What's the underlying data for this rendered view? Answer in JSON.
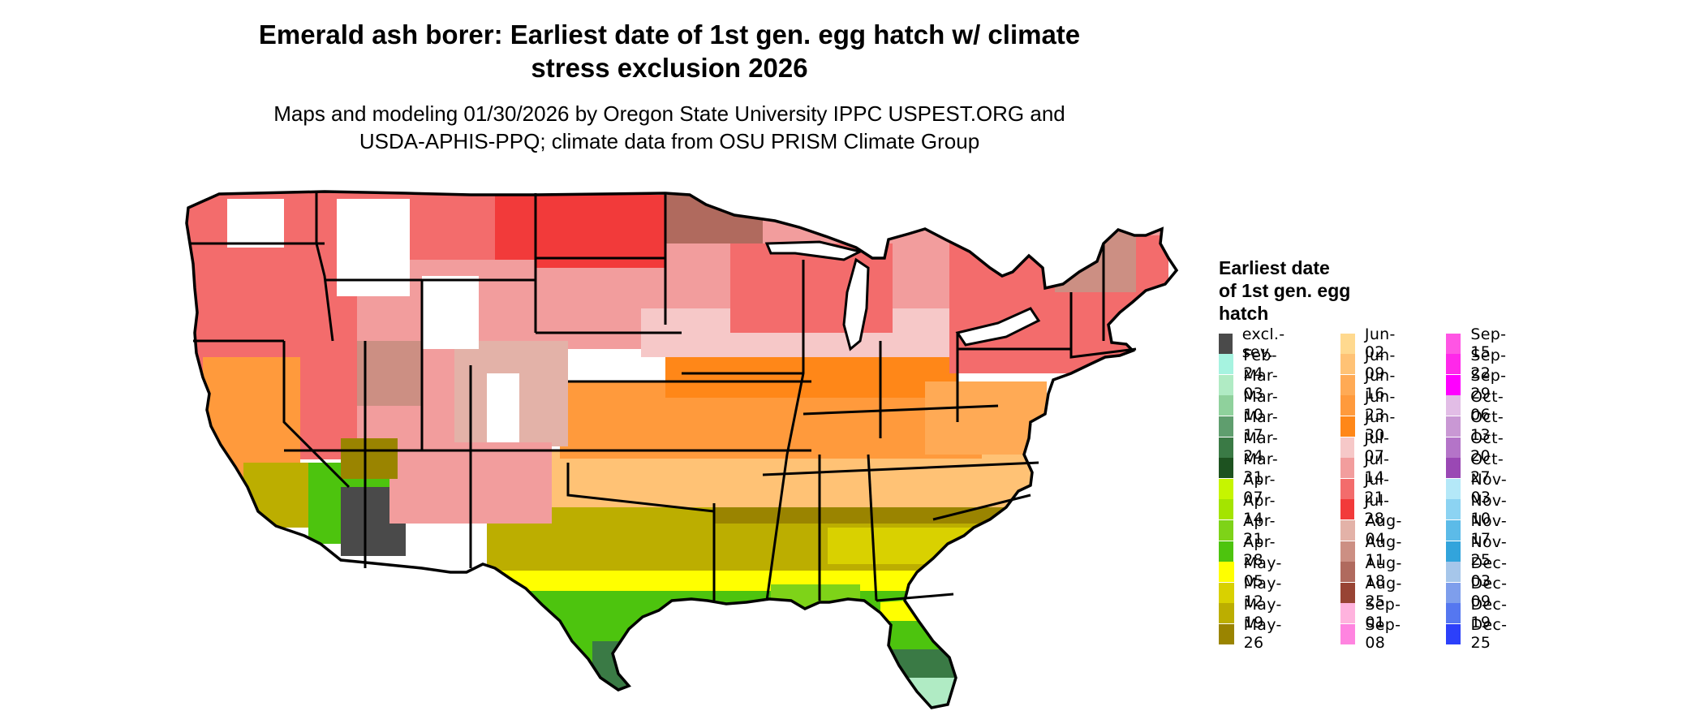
{
  "title_line1": "Emerald ash borer: Earliest date of 1st gen. egg hatch w/ climate",
  "title_line2": "stress exclusion 2026",
  "subtitle_line1": "Maps and modeling 01/30/2026 by Oregon State University IPPC USPEST.ORG and",
  "subtitle_line2": "USDA-APHIS-PPQ; climate data from OSU PRISM Climate Group",
  "legend": {
    "title_line1": "Earliest date",
    "title_line2": "of 1st gen. egg",
    "title_line3": "hatch",
    "items": [
      {
        "label": "excl.-sev.",
        "color": "#4a4a4a"
      },
      {
        "label": "Feb-24",
        "color": "#a6f3e0"
      },
      {
        "label": "Mar-03",
        "color": "#b0ebc4"
      },
      {
        "label": "Mar-10",
        "color": "#8fd19c"
      },
      {
        "label": "Mar-17",
        "color": "#5f9e6e"
      },
      {
        "label": "Mar-24",
        "color": "#3a7a45"
      },
      {
        "label": "Mar-31",
        "color": "#1d5220"
      },
      {
        "label": "Apr-07",
        "color": "#c6f500"
      },
      {
        "label": "Apr-14",
        "color": "#a4e400"
      },
      {
        "label": "Apr-21",
        "color": "#7ed318"
      },
      {
        "label": "Apr-28",
        "color": "#4dc40e"
      },
      {
        "label": "May-05",
        "color": "#ffff00"
      },
      {
        "label": "May-12",
        "color": "#d9d100"
      },
      {
        "label": "May-19",
        "color": "#bcae00"
      },
      {
        "label": "May-26",
        "color": "#9a8400"
      },
      {
        "label": "Jun-02",
        "color": "#ffd98f"
      },
      {
        "label": "Jun-09",
        "color": "#ffc275"
      },
      {
        "label": "Jun-16",
        "color": "#ffaa55"
      },
      {
        "label": "Jun-23",
        "color": "#ff9a3c"
      },
      {
        "label": "Jun-30",
        "color": "#ff8718"
      },
      {
        "label": "Jul-07",
        "color": "#f6c8c8"
      },
      {
        "label": "Jul-14",
        "color": "#f29d9d"
      },
      {
        "label": "Jul-21",
        "color": "#f36c6c"
      },
      {
        "label": "Jul-28",
        "color": "#f23a3a"
      },
      {
        "label": "Aug-04",
        "color": "#e3b2a8"
      },
      {
        "label": "Aug-11",
        "color": "#cc8f83"
      },
      {
        "label": "Aug-18",
        "color": "#b06a5e"
      },
      {
        "label": "Aug-25",
        "color": "#984434"
      },
      {
        "label": "Sep-01",
        "color": "#ffb3de"
      },
      {
        "label": "Sep-08",
        "color": "#ff84e0"
      },
      {
        "label": "Sep-15",
        "color": "#ff55e4"
      },
      {
        "label": "Sep-22",
        "color": "#ff28ea"
      },
      {
        "label": "Sep-29",
        "color": "#ff00ff"
      },
      {
        "label": "Oct-06",
        "color": "#e2bde6"
      },
      {
        "label": "Oct-13",
        "color": "#c998d4"
      },
      {
        "label": "Oct-20",
        "color": "#b474c8"
      },
      {
        "label": "Oct-27",
        "color": "#9a48b4"
      },
      {
        "label": "Nov-03",
        "color": "#b4e8f8"
      },
      {
        "label": "Nov-10",
        "color": "#8cd3f2"
      },
      {
        "label": "Nov-17",
        "color": "#5cbbe8"
      },
      {
        "label": "Nov-25",
        "color": "#32a4dc"
      },
      {
        "label": "Dec-03",
        "color": "#a6c6ea"
      },
      {
        "label": "Dec-09",
        "color": "#7e9eec"
      },
      {
        "label": "Dec-19",
        "color": "#5577f0"
      },
      {
        "label": "Dec-25",
        "color": "#2c40fa"
      }
    ]
  },
  "colors": {
    "state_border": "#000000",
    "background": "#ffffff"
  }
}
